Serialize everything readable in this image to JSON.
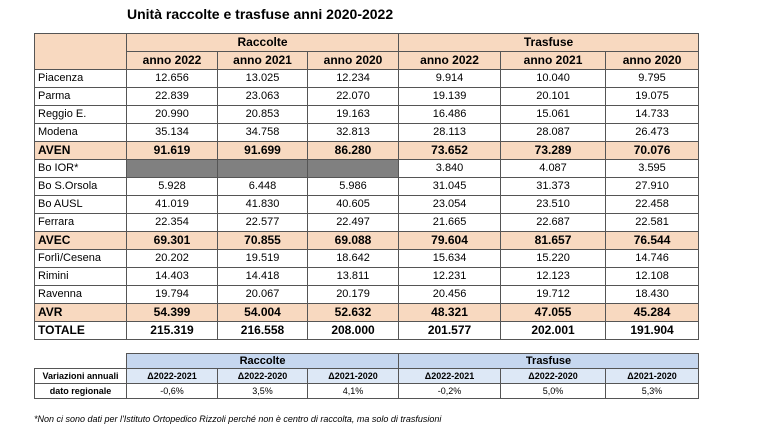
{
  "title": "Unità raccolte e trasfuse anni 2020-2022",
  "groups": {
    "raccolte": "Raccolte",
    "trasfuse": "Trasfuse"
  },
  "years": [
    "anno 2022",
    "anno 2021",
    "anno 2020",
    "anno 2022",
    "anno 2021",
    "anno 2020"
  ],
  "rows": [
    {
      "label": "Piacenza",
      "type": "normal",
      "values": [
        "12.656",
        "13.025",
        "12.234",
        "9.914",
        "10.040",
        "9.795"
      ]
    },
    {
      "label": "Parma",
      "type": "normal",
      "values": [
        "22.839",
        "23.063",
        "22.070",
        "19.139",
        "20.101",
        "19.075"
      ]
    },
    {
      "label": "Reggio E.",
      "type": "normal",
      "values": [
        "20.990",
        "20.853",
        "19.163",
        "16.486",
        "15.061",
        "14.733"
      ]
    },
    {
      "label": "Modena",
      "type": "normal",
      "values": [
        "35.134",
        "34.758",
        "32.813",
        "28.113",
        "28.087",
        "26.473"
      ]
    },
    {
      "label": "AVEN",
      "type": "sum",
      "values": [
        "91.619",
        "91.699",
        "86.280",
        "73.652",
        "73.289",
        "70.076"
      ]
    },
    {
      "label": "Bo IOR*",
      "type": "gray",
      "values": [
        "",
        "",
        "",
        "3.840",
        "4.087",
        "3.595"
      ]
    },
    {
      "label": "Bo S.Orsola",
      "type": "normal",
      "values": [
        "5.928",
        "6.448",
        "5.986",
        "31.045",
        "31.373",
        "27.910"
      ]
    },
    {
      "label": "Bo AUSL",
      "type": "normal",
      "values": [
        "41.019",
        "41.830",
        "40.605",
        "23.054",
        "23.510",
        "22.458"
      ]
    },
    {
      "label": "Ferrara",
      "type": "normal",
      "values": [
        "22.354",
        "22.577",
        "22.497",
        "21.665",
        "22.687",
        "22.581"
      ]
    },
    {
      "label": "AVEC",
      "type": "sum",
      "values": [
        "69.301",
        "70.855",
        "69.088",
        "79.604",
        "81.657",
        "76.544"
      ]
    },
    {
      "label": "Forlì/Cesena",
      "type": "normal",
      "values": [
        "20.202",
        "19.519",
        "18.642",
        "15.634",
        "15.220",
        "14.746"
      ]
    },
    {
      "label": "Rimini",
      "type": "normal",
      "values": [
        "14.403",
        "14.418",
        "13.811",
        "12.231",
        "12.123",
        "12.108"
      ]
    },
    {
      "label": "Ravenna",
      "type": "normal",
      "values": [
        "19.794",
        "20.067",
        "20.179",
        "20.456",
        "19.712",
        "18.430"
      ]
    },
    {
      "label": "AVR",
      "type": "sum",
      "values": [
        "54.399",
        "54.004",
        "52.632",
        "48.321",
        "47.055",
        "45.284"
      ]
    },
    {
      "label": "TOTALE",
      "type": "total",
      "values": [
        "215.319",
        "216.558",
        "208.000",
        "201.577",
        "202.001",
        "191.904"
      ]
    }
  ],
  "variations": {
    "group_raccolte": "Raccolte",
    "group_trasfuse": "Trasfuse",
    "row1_label": "Variazioni annuali",
    "row2_label": "dato regionale",
    "periods": [
      "Δ2022-2021",
      "Δ2022-2020",
      "Δ2021-2020",
      "Δ2022-2021",
      "Δ2022-2020",
      "Δ2021-2020"
    ],
    "values": [
      "-0,6%",
      "3,5%",
      "4,1%",
      "-0,2%",
      "5,0%",
      "5,3%"
    ]
  },
  "note": "*Non ci sono dati per l'Istituto Ortopedico Rizzoli perché non è centro di raccolta, ma solo di trasfusioni"
}
